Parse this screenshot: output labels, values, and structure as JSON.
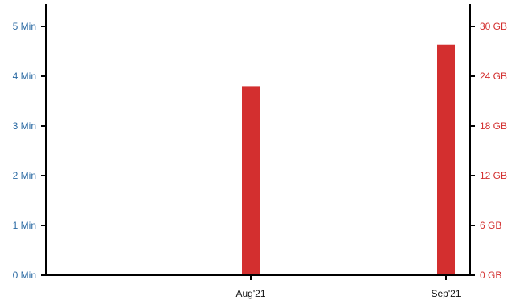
{
  "chart_data": {
    "type": "bar",
    "categories": [
      "Aug'21",
      "Sep'21"
    ],
    "axes": {
      "left": {
        "unit": "Min",
        "ylim": [
          0,
          5
        ],
        "ticks": [
          "0 Min",
          "1 Min",
          "2 Min",
          "3 Min",
          "4 Min",
          "5 Min"
        ],
        "color": "#2b6aa3"
      },
      "right": {
        "unit": "GB",
        "ylim": [
          0,
          30
        ],
        "ticks": [
          "0 GB",
          "6 GB",
          "12 GB",
          "18 GB",
          "24 GB",
          "30 GB"
        ],
        "color": "#d32f2f"
      }
    },
    "series": [
      {
        "axis": "right",
        "color": "#d32f2f",
        "values": [
          22.8,
          27.8
        ]
      }
    ],
    "grid": false,
    "legend": "none"
  }
}
